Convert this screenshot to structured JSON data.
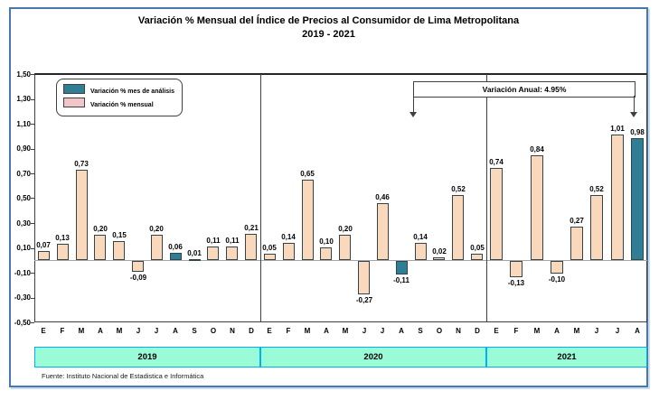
{
  "chart_data": {
    "type": "bar",
    "title": "Variación % Mensual del Índice de Precios al Consumidor de Lima Metropolitana",
    "subtitle": "2019 - 2021",
    "source": "Fuente: Instituto Nacional de Estadistica e Informática",
    "xlabel": "",
    "ylabel": "",
    "ylim": [
      -0.5,
      1.5
    ],
    "ytick_step": 0.2,
    "grid": false,
    "legend_position": "top-left",
    "annotation": "Variación Anual: 4.95%",
    "groups": [
      {
        "year": "2019",
        "months": [
          "E",
          "F",
          "M",
          "A",
          "M",
          "J",
          "J",
          "A",
          "S",
          "O",
          "N",
          "D"
        ],
        "values": [
          0.07,
          0.13,
          0.73,
          0.2,
          0.15,
          -0.09,
          0.2,
          0.06,
          0.01,
          0.11,
          0.11,
          0.21
        ],
        "labels": [
          "0,07",
          "0,13",
          "0,73",
          "0,20",
          "0,15",
          "-0,09",
          "0,20",
          "0,06",
          "0,01",
          "0,11",
          "0,11",
          "0,21"
        ],
        "highlight_index": 7
      },
      {
        "year": "2020",
        "months": [
          "E",
          "F",
          "M",
          "A",
          "M",
          "J",
          "J",
          "A",
          "S",
          "O",
          "N",
          "D"
        ],
        "values": [
          0.05,
          0.14,
          0.65,
          0.1,
          0.2,
          -0.27,
          0.46,
          -0.11,
          0.14,
          0.02,
          0.52,
          0.05
        ],
        "labels": [
          "0,05",
          "0,14",
          "0,65",
          "0,10",
          "0,20",
          "-0,27",
          "0,46",
          "-0,11",
          "0,14",
          "0,02",
          "0,52",
          "0,05"
        ],
        "highlight_index": 7
      },
      {
        "year": "2021",
        "months": [
          "E",
          "F",
          "M",
          "A",
          "M",
          "J",
          "J",
          "A"
        ],
        "values": [
          0.74,
          -0.13,
          0.84,
          -0.1,
          0.27,
          0.52,
          1.01,
          0.98
        ],
        "labels": [
          "0,74",
          "-0,13",
          "0,84",
          "-0,10",
          "0,27",
          "0,52",
          "1,01",
          "0,98"
        ],
        "highlight_index": 7
      }
    ]
  },
  "legend": {
    "items": [
      {
        "label": "Variación % mes de análisis",
        "color": "#2F7E96"
      },
      {
        "label": "Variación % mensual",
        "color": "#F2C5C9"
      }
    ]
  },
  "colors": {
    "bar_fill": "#FAD8BC",
    "bar_border": "#33444a",
    "highlight_fill": "#2F7E96",
    "year_band_fill": "#9AFBD7",
    "year_band_border": "#00B0F0",
    "frame_border": "#4878B0"
  }
}
